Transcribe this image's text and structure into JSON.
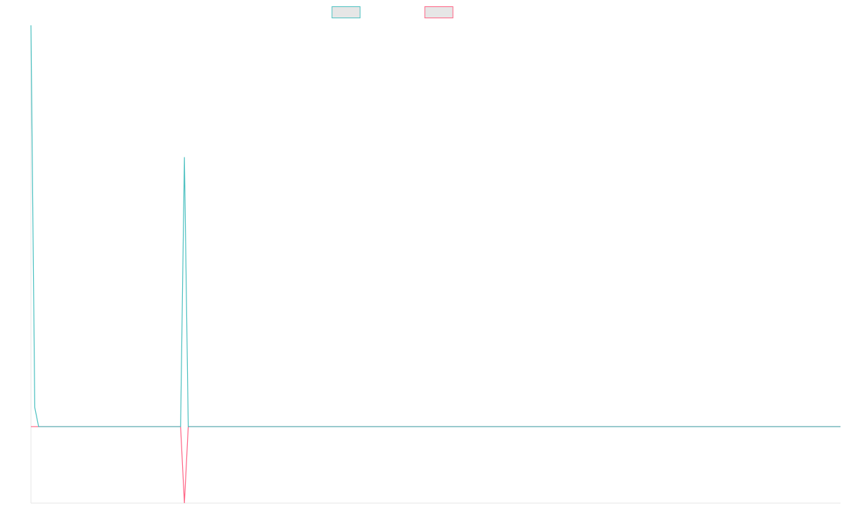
{
  "chart_data": {
    "type": "line",
    "title": "",
    "xlabel": "",
    "ylabel": "",
    "grid": false,
    "legend_position": "top-center",
    "x": [
      0,
      1,
      2,
      3,
      4,
      5,
      6,
      7,
      8,
      9,
      10,
      11,
      12,
      13,
      14,
      15,
      16,
      17,
      18,
      19,
      20,
      21,
      22,
      23,
      24,
      25,
      26,
      27,
      28,
      29,
      30,
      31,
      32,
      33,
      34,
      35,
      36,
      37,
      38,
      39,
      40,
      41,
      42,
      43,
      44,
      45,
      46,
      47,
      48,
      49,
      50,
      51,
      52,
      53,
      54,
      55,
      56,
      57,
      58,
      59,
      60,
      61,
      62,
      63,
      64,
      65,
      66,
      67,
      68,
      69,
      70,
      71,
      72,
      73,
      74,
      75,
      76,
      77,
      78,
      79,
      80,
      81,
      82,
      83,
      84,
      85,
      86,
      87,
      88,
      89,
      90,
      91,
      92,
      93,
      94,
      95,
      96,
      97,
      98,
      99,
      100,
      101,
      102,
      103,
      104,
      105,
      106,
      107,
      108,
      109,
      110,
      111,
      112,
      113,
      114,
      115,
      116,
      117,
      118,
      119,
      120,
      121,
      122,
      123,
      124,
      125,
      126,
      127,
      128,
      129,
      130,
      131,
      132,
      133,
      134,
      135,
      136,
      137,
      138,
      139,
      140,
      141,
      142,
      143,
      144,
      145,
      146,
      147,
      148,
      149,
      150,
      151,
      152,
      153,
      154,
      155,
      156,
      157,
      158,
      159,
      160,
      161,
      162,
      163,
      164,
      165,
      166,
      167,
      168,
      169,
      170,
      171,
      172,
      173,
      174,
      175,
      176,
      177,
      178,
      179,
      180,
      181,
      182,
      183,
      184,
      185,
      186,
      187,
      188,
      189,
      190,
      191,
      192,
      193,
      194,
      195,
      196,
      197,
      198,
      199,
      200,
      201,
      202,
      203,
      204,
      205,
      206,
      207,
      208,
      209,
      210,
      211
    ],
    "ylim": [
      -20,
      105
    ],
    "series": [
      {
        "color": "#4bc0c0",
        "values": [
          105,
          5,
          0,
          0,
          0,
          0,
          0,
          0,
          0,
          0,
          0,
          0,
          0,
          0,
          0,
          0,
          0,
          0,
          0,
          0,
          0,
          0,
          0,
          0,
          0,
          0,
          0,
          0,
          0,
          0,
          0,
          0,
          0,
          0,
          0,
          0,
          0,
          0,
          0,
          0,
          70.5,
          0,
          0,
          0,
          0,
          0,
          0,
          0,
          0,
          0,
          0,
          0,
          0,
          0,
          0,
          0,
          0,
          0,
          0,
          0,
          0,
          0,
          0,
          0,
          0,
          0,
          0,
          0,
          0,
          0,
          0,
          0,
          0,
          0,
          0,
          0,
          0,
          0,
          0,
          0,
          0,
          0,
          0,
          0,
          0,
          0,
          0,
          0,
          0,
          0,
          0,
          0,
          0,
          0,
          0,
          0,
          0,
          0,
          0,
          0,
          0,
          0,
          0,
          0,
          0,
          0,
          0,
          0,
          0,
          0,
          0,
          0,
          0,
          0,
          0,
          0,
          0,
          0,
          0,
          0,
          0,
          0,
          0,
          0,
          0,
          0,
          0,
          0,
          0,
          0,
          0,
          0,
          0,
          0,
          0,
          0,
          0,
          0,
          0,
          0,
          0,
          0,
          0,
          0,
          0,
          0,
          0,
          0,
          0,
          0,
          0,
          0,
          0,
          0,
          0,
          0,
          0,
          0,
          0,
          0,
          0,
          0,
          0,
          0,
          0,
          0,
          0,
          0,
          0,
          0,
          0,
          0,
          0,
          0,
          0,
          0,
          0,
          0,
          0,
          0,
          0,
          0,
          0,
          0,
          0,
          0,
          0,
          0,
          0,
          0,
          0,
          0,
          0,
          0,
          0,
          0,
          0,
          0,
          0,
          0,
          0,
          0,
          0,
          0,
          0,
          0,
          0,
          0,
          0,
          0,
          0,
          0
        ]
      },
      {
        "color": "#ff6384",
        "values": [
          0,
          0,
          0,
          0,
          0,
          0,
          0,
          0,
          0,
          0,
          0,
          0,
          0,
          0,
          0,
          0,
          0,
          0,
          0,
          0,
          0,
          0,
          0,
          0,
          0,
          0,
          0,
          0,
          0,
          0,
          0,
          0,
          0,
          0,
          0,
          0,
          0,
          0,
          0,
          0,
          -20,
          0,
          0,
          0,
          0,
          0,
          0,
          0,
          0,
          0,
          0,
          0,
          0,
          0,
          0,
          0,
          0,
          0,
          0,
          0,
          0,
          0,
          0,
          0,
          0,
          0,
          0,
          0,
          0,
          0,
          0,
          0,
          0,
          0,
          0,
          0,
          0,
          0,
          0,
          0,
          0,
          0,
          0,
          0,
          0,
          0,
          0,
          0,
          0,
          0,
          0,
          0,
          0,
          0,
          0,
          0,
          0,
          0,
          0,
          0,
          0,
          0,
          0,
          0,
          0,
          0,
          0,
          0,
          0,
          0,
          0,
          0,
          0,
          0,
          0,
          0,
          0,
          0,
          0,
          0,
          0,
          0,
          0,
          0,
          0,
          0,
          0,
          0,
          0,
          0,
          0,
          0,
          0,
          0,
          0,
          0,
          0,
          0,
          0,
          0,
          0,
          0,
          0,
          0,
          0,
          0,
          0,
          0,
          0,
          0,
          0,
          0,
          0,
          0,
          0,
          0,
          0,
          0,
          0,
          0,
          0,
          0,
          0,
          0,
          0,
          0,
          0,
          0,
          0,
          0,
          0,
          0,
          0,
          0,
          0,
          0,
          0,
          0,
          0,
          0,
          0,
          0,
          0,
          0,
          0,
          0,
          0,
          0,
          0,
          0,
          0,
          0,
          0,
          0,
          0,
          0,
          0,
          0,
          0,
          0,
          0,
          0,
          0,
          0,
          0,
          0,
          0,
          0,
          0,
          0,
          0,
          0
        ]
      }
    ]
  }
}
